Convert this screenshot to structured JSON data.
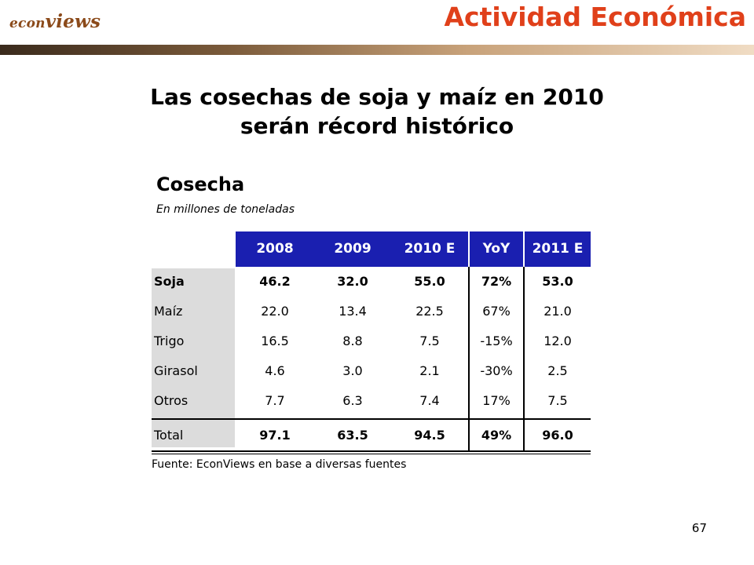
{
  "header": {
    "logo_prefix": "econ",
    "logo_suffix": "views",
    "section": "Actividad Económica"
  },
  "title_line1": "Las cosechas de soja y maíz en 2010",
  "title_line2": "serán récord histórico",
  "table": {
    "title": "Cosecha",
    "subtitle": "En millones de toneladas",
    "columns": [
      "2008",
      "2009",
      "2010 E",
      "YoY",
      "2011 E"
    ],
    "rows": [
      {
        "label": "Soja",
        "values": [
          "46.2",
          "32.0",
          "55.0",
          "72%",
          "53.0"
        ]
      },
      {
        "label": "Maíz",
        "values": [
          "22.0",
          "13.4",
          "22.5",
          "67%",
          "21.0"
        ]
      },
      {
        "label": "Trigo",
        "values": [
          "16.5",
          "8.8",
          "7.5",
          "-15%",
          "12.0"
        ]
      },
      {
        "label": "Girasol",
        "values": [
          "4.6",
          "3.0",
          "2.1",
          "-30%",
          "2.5"
        ]
      },
      {
        "label": "Otros",
        "values": [
          "7.7",
          "6.3",
          "7.4",
          "17%",
          "7.5"
        ]
      },
      {
        "label": "Total",
        "values": [
          "97.1",
          "63.5",
          "94.5",
          "49%",
          "96.0"
        ]
      }
    ],
    "source": "Fuente: EconViews en base a diversas fuentes"
  },
  "page_number": "67",
  "colors": {
    "header_blue": "#1a1fb0",
    "section_red": "#e0401a",
    "logo_brown": "#8b4a1a"
  }
}
